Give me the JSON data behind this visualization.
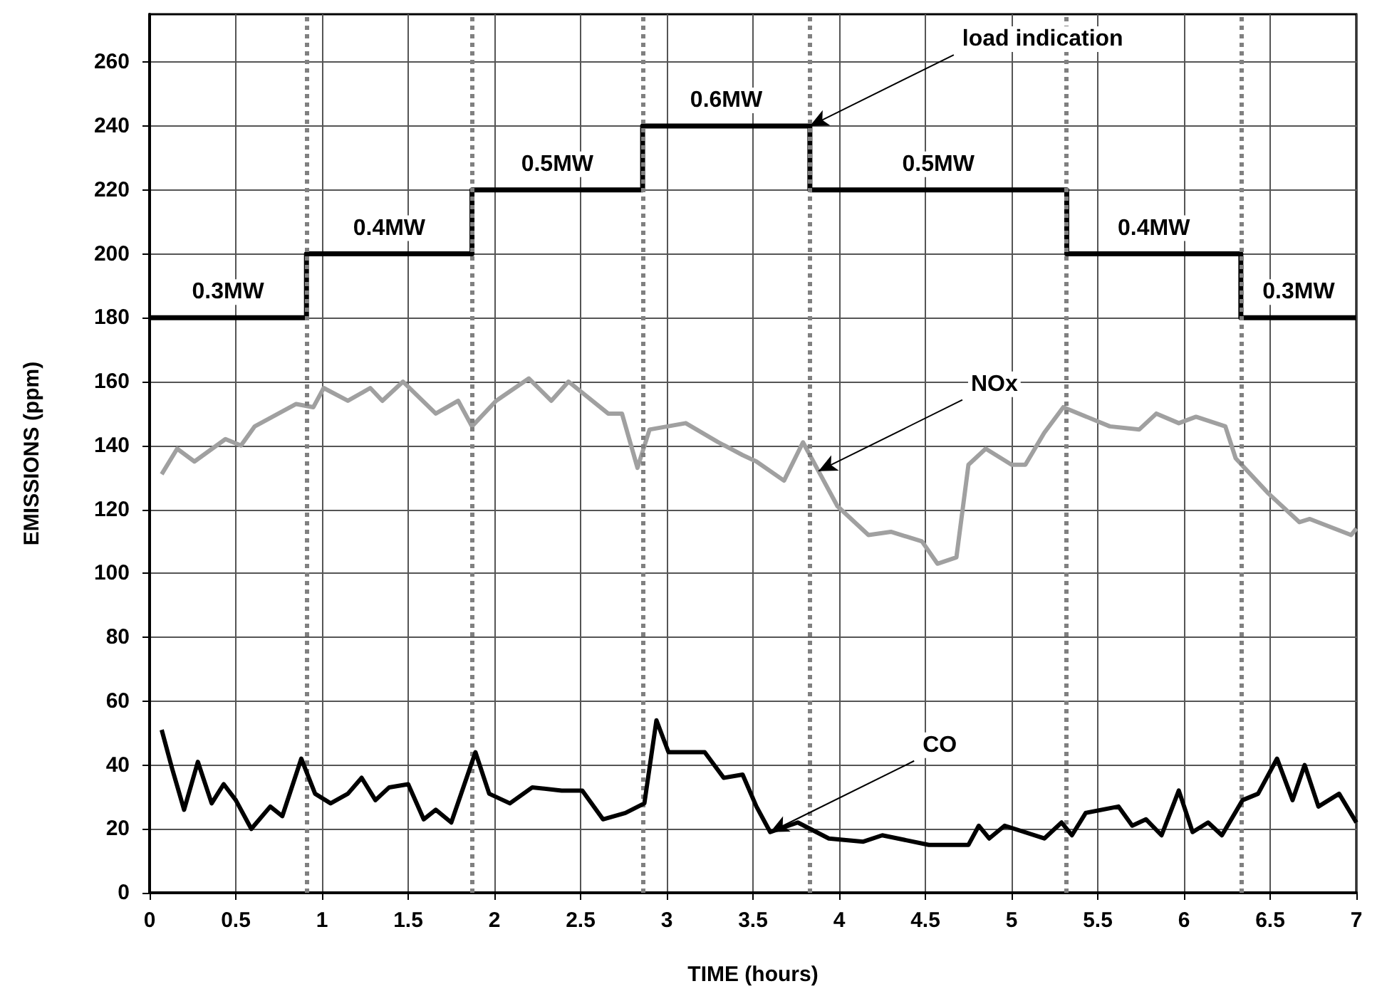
{
  "chart_data": {
    "type": "line",
    "xlabel": "TIME (hours)",
    "ylabel": "EMISSIONS (ppm)",
    "xlim": [
      0,
      7
    ],
    "xticks": [
      0,
      0.5,
      1,
      1.5,
      2,
      2.5,
      3,
      3.5,
      4,
      4.5,
      5,
      5.5,
      6,
      6.5,
      7
    ],
    "ylim": [
      0,
      275
    ],
    "yticks": [
      0,
      20,
      40,
      60,
      80,
      100,
      120,
      140,
      160,
      180,
      200,
      220,
      240,
      260
    ],
    "grid": true,
    "line_style": "solid",
    "series": [
      {
        "type": "step",
        "color": "#000000",
        "x": [
          0,
          0.91,
          1.87,
          2.86,
          3.83,
          5.32,
          6.33,
          7
        ],
        "values": [
          180,
          200,
          220,
          240,
          220,
          200,
          180,
          180
        ]
      },
      {
        "color": "#a0a0a0",
        "x": [
          0.07,
          0.16,
          0.26,
          0.44,
          0.53,
          0.61,
          0.85,
          0.95,
          1.01,
          1.15,
          1.28,
          1.35,
          1.47,
          1.66,
          1.79,
          1.87,
          2.01,
          2.2,
          2.33,
          2.43,
          2.66,
          2.74,
          2.83,
          2.9,
          3.11,
          3.3,
          3.44,
          3.52,
          3.68,
          3.79,
          3.88,
          3.99,
          4.17,
          4.3,
          4.48,
          4.57,
          4.68,
          4.75,
          4.85,
          5,
          5.08,
          5.19,
          5.3,
          5.57,
          5.74,
          5.84,
          5.97,
          6.07,
          6.24,
          6.3,
          6.49,
          6.67,
          6.73,
          6.97,
          7
        ],
        "values": [
          131,
          139,
          135,
          142,
          140,
          146,
          153,
          152,
          158,
          154,
          158,
          154,
          160,
          150,
          154,
          146,
          154,
          161,
          154,
          160,
          150,
          150,
          133,
          145,
          147,
          141,
          137,
          135,
          129,
          141,
          132,
          121,
          112,
          113,
          110,
          103,
          105,
          134,
          139,
          134,
          134,
          144,
          152,
          146,
          145,
          150,
          147,
          149,
          146,
          136,
          125,
          116,
          117,
          112,
          114
        ]
      },
      {
        "color": "#000000",
        "x": [
          0.07,
          0.13,
          0.2,
          0.28,
          0.36,
          0.43,
          0.5,
          0.59,
          0.7,
          0.77,
          0.88,
          0.96,
          1.05,
          1.15,
          1.23,
          1.31,
          1.39,
          1.5,
          1.59,
          1.66,
          1.75,
          1.89,
          1.97,
          2.09,
          2.22,
          2.39,
          2.51,
          2.63,
          2.76,
          2.87,
          2.94,
          3.01,
          3.22,
          3.33,
          3.44,
          3.52,
          3.6,
          3.76,
          3.94,
          4.14,
          4.25,
          4.52,
          4.75,
          4.81,
          4.87,
          4.96,
          5.19,
          5.29,
          5.35,
          5.43,
          5.62,
          5.7,
          5.78,
          5.87,
          5.97,
          6.05,
          6.14,
          6.22,
          6.34,
          6.43,
          6.54,
          6.63,
          6.7,
          6.78,
          6.9,
          7
        ],
        "values": [
          51,
          39,
          26,
          41,
          28,
          34,
          29,
          20,
          27,
          24,
          42,
          31,
          28,
          31,
          36,
          29,
          33,
          34,
          23,
          26,
          22,
          44,
          31,
          28,
          33,
          32,
          32,
          23,
          25,
          28,
          54,
          44,
          44,
          36,
          37,
          27,
          19,
          22,
          17,
          16,
          18,
          15,
          15,
          21,
          17,
          21,
          17,
          22,
          18,
          25,
          27,
          21,
          23,
          18,
          32,
          19,
          22,
          18,
          29,
          31,
          42,
          29,
          40,
          27,
          31,
          22
        ]
      }
    ],
    "ref_lines": [
      {
        "axis": "x",
        "value": 0.91,
        "color": "#808080",
        "line_style": "dotted"
      },
      {
        "axis": "x",
        "value": 1.87,
        "color": "#808080",
        "line_style": "dotted"
      },
      {
        "axis": "x",
        "value": 2.86,
        "color": "#808080",
        "line_style": "dotted"
      },
      {
        "axis": "x",
        "value": 3.83,
        "color": "#808080",
        "line_style": "dotted"
      },
      {
        "axis": "x",
        "value": 5.32,
        "color": "#808080",
        "line_style": "dotted"
      },
      {
        "axis": "x",
        "value": 6.33,
        "color": "#808080",
        "line_style": "dotted"
      }
    ],
    "annotations": [
      {
        "text": "0.3MW",
        "x": 0.455,
        "y": 180
      },
      {
        "text": "0.4MW",
        "x": 1.39,
        "y": 200
      },
      {
        "text": "0.5MW",
        "x": 2.365,
        "y": 220
      },
      {
        "text": "0.6MW",
        "x": 3.345,
        "y": 240
      },
      {
        "text": "0.5MW",
        "x": 4.575,
        "y": 220
      },
      {
        "text": "0.4MW",
        "x": 5.825,
        "y": 200
      },
      {
        "text": "0.3MW",
        "x": 6.665,
        "y": 180
      },
      {
        "text": "load indication",
        "x": 3.83,
        "y": 240
      },
      {
        "text": "NOx",
        "x": 3.88,
        "y": 132
      },
      {
        "text": "CO",
        "x": 3.6,
        "y": 19
      }
    ]
  }
}
